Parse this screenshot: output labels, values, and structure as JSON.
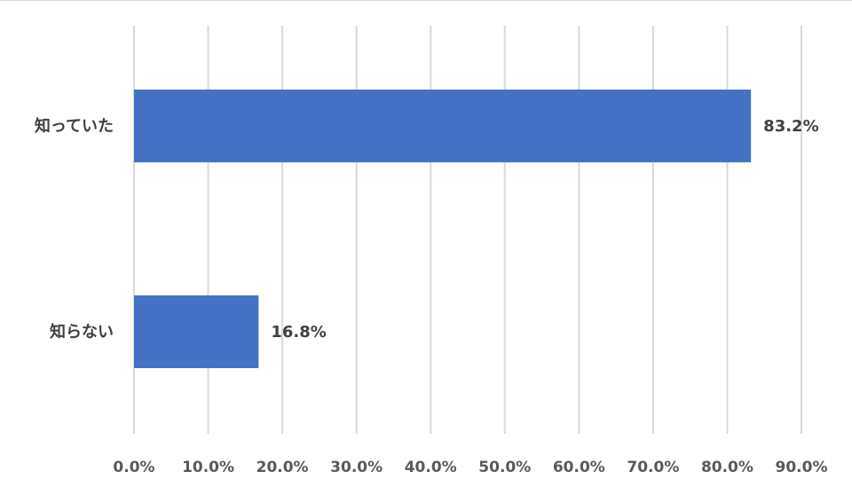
{
  "chart_data": {
    "type": "bar",
    "orientation": "horizontal",
    "categories": [
      "知っていた",
      "知らない"
    ],
    "values": [
      83.2,
      16.8
    ],
    "data_labels": [
      "83.2%",
      "16.8%"
    ],
    "xlim": [
      0,
      90
    ],
    "xticks": [
      0,
      10,
      20,
      30,
      40,
      50,
      60,
      70,
      80,
      90
    ],
    "xtick_labels": [
      "0.0%",
      "10.0%",
      "20.0%",
      "30.0%",
      "40.0%",
      "50.0%",
      "60.0%",
      "70.0%",
      "80.0%",
      "90.0%"
    ],
    "grid": true,
    "legend": "none",
    "bar_color": "#4472c4"
  }
}
